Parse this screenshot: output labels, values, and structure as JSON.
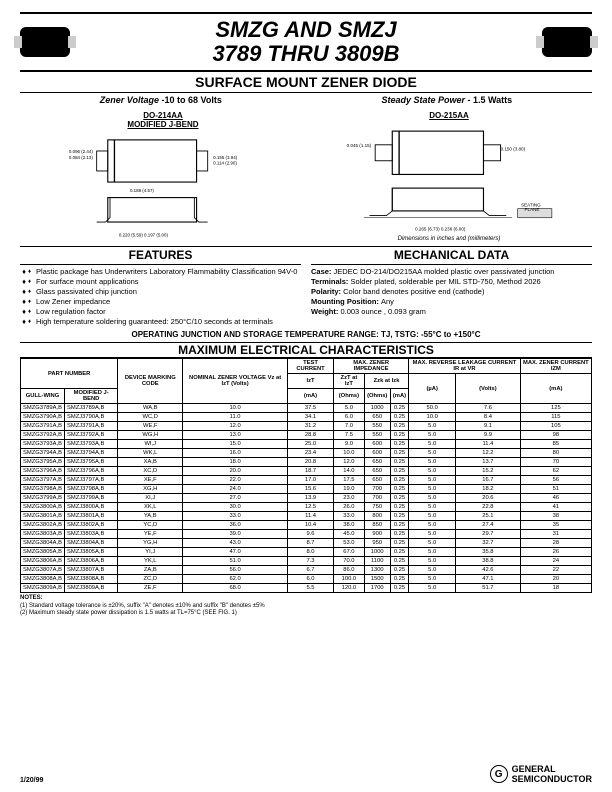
{
  "header": {
    "title_l1": "SMZG AND SMZJ",
    "title_l2": "3789 THRU 3809B"
  },
  "subtitle": "SURFACE MOUNT ZENER DIODE",
  "specs": {
    "left_label": "Zener Voltage -",
    "left_val": "10 to 68 Volts",
    "right_label": "Steady State Power -",
    "right_val": " 1.5 Watts"
  },
  "diag": {
    "left_title_l1": "DO-214AA",
    "left_title_l2": "MODIFIED J-BEND",
    "right_title": "DO-215AA",
    "dim_note": "Dimensions in inches and (millimeters)"
  },
  "features_title": "FEATURES",
  "features": [
    "Plastic package has Underwriters Laboratory Flammability Classification 94V-0",
    "For surface mount applications",
    "Glass passivated chip junction",
    "Low Zener impedance",
    "Low regulation factor",
    "High temperature soldering guaranteed: 250°C/10 seconds at terminals"
  ],
  "mech_title": "MECHANICAL DATA",
  "mech": {
    "case": "JEDEC DO-214/DO215AA molded plastic over passivated junction",
    "terminals": "Solder plated, solderable per MIL STD-750, Method 2026",
    "polarity": "Color band denotes positive end (cathode)",
    "mounting": "Any",
    "weight": "0.003 ounce , 0.093 gram"
  },
  "op_range": "OPERATING JUNCTION AND STORAGE TEMPERATURE RANGE: TJ, TSTG: -55°C to +150°C",
  "table_title": "MAXIMUM ELECTRICAL CHARACTERISTICS",
  "thead": {
    "part": "PART NUMBER",
    "gull": "GULL-WING",
    "jbend": "MODIFIED J-BEND",
    "marking": "DEVICE MARKING CODE",
    "vz": "NOMINAL ZENER VOLTAGE Vz at IzT (Volts)",
    "izt": "TEST CURRENT",
    "izt_sub": "IzT",
    "izt_unit": "(mA)",
    "imp": "MAX. ZENER IMPEDANCE",
    "zzt": "ZzT at IzT",
    "zzk": "Zzk at Izk",
    "ohms": "(Ohms)",
    "ma": "(mA)",
    "ir": "MAX. REVERSE LEAKAGE CURRENT IR at VR",
    "ua": "(µA)",
    "volts": "(Volts)",
    "izm": "MAX. ZENER CURRENT IZM",
    "izm_unit": "(mA)"
  },
  "rows": [
    [
      "SMZG3789A,B",
      "SMZJ3789A,B",
      "WA,B",
      "10.0",
      "37.5",
      "5.0",
      "1000",
      "0.25",
      "50.0",
      "7.6",
      "125"
    ],
    [
      "SMZG3790A,B",
      "SMZJ3790A,B",
      "WC,D",
      "11.0",
      "34.1",
      "6.0",
      "650",
      "0.25",
      "10.0",
      "8.4",
      "115"
    ],
    [
      "SMZG3791A,B",
      "SMZJ3791A,B",
      "WE,F",
      "12.0",
      "31.2",
      "7.0",
      "550",
      "0.25",
      "5.0",
      "9.1",
      "105"
    ],
    [
      "SMZG3792A,B",
      "SMZJ3792A,B",
      "WG,H",
      "13.0",
      "28.8",
      "7.5",
      "550",
      "0.25",
      "5.0",
      "9.9",
      "98"
    ],
    [
      "SMZG3793A,B",
      "SMZJ3793A,B",
      "WI,J",
      "15.0",
      "25.0",
      "9.0",
      "600",
      "0.25",
      "5.0",
      "11.4",
      "85"
    ],
    [
      "SMZG3794A,B",
      "SMZJ3794A,B",
      "WK,L",
      "16.0",
      "23.4",
      "10.0",
      "600",
      "0.25",
      "5.0",
      "12.2",
      "80"
    ],
    [
      "SMZG3795A,B",
      "SMZJ3795A,B",
      "XA,B",
      "18.0",
      "20.8",
      "12.0",
      "650",
      "0.25",
      "5.0",
      "13.7",
      "70"
    ],
    [
      "SMZG3796A,B",
      "SMZJ3796A,B",
      "XC,D",
      "20.0",
      "18.7",
      "14.0",
      "650",
      "0.25",
      "5.0",
      "15.2",
      "62"
    ],
    [
      "SMZG3797A,B",
      "SMZJ3797A,B",
      "XE,F",
      "22.0",
      "17.0",
      "17.5",
      "650",
      "0.25",
      "5.0",
      "16.7",
      "56"
    ],
    [
      "SMZG3798A,B",
      "SMZJ3798A,B",
      "XG,H",
      "24.0",
      "15.6",
      "19.0",
      "700",
      "0.25",
      "5.0",
      "18.2",
      "51"
    ],
    [
      "SMZG3799A,B",
      "SMZJ3799A,B",
      "XI,J",
      "27.0",
      "13.9",
      "23.0",
      "700",
      "0.25",
      "5.0",
      "20.6",
      "46"
    ],
    [
      "SMZG3800A,B",
      "SMZJ3800A,B",
      "XK,L",
      "30.0",
      "12.5",
      "26.0",
      "750",
      "0.25",
      "5.0",
      "22.8",
      "41"
    ],
    [
      "SMZG3801A,B",
      "SMZJ3801A,B",
      "YA,B",
      "33.0",
      "11.4",
      "33.0",
      "800",
      "0.25",
      "5.0",
      "25.1",
      "38"
    ],
    [
      "SMZG3802A,B",
      "SMZJ3802A,B",
      "YC,D",
      "36.0",
      "10.4",
      "38.0",
      "850",
      "0.25",
      "5.0",
      "27.4",
      "35"
    ],
    [
      "SMZG3803A,B",
      "SMZJ3803A,B",
      "YE,F",
      "39.0",
      "9.6",
      "45.0",
      "900",
      "0.25",
      "5.0",
      "29.7",
      "31"
    ],
    [
      "SMZG3804A,B",
      "SMZJ3804A,B",
      "YG,H",
      "43.0",
      "8.7",
      "53.0",
      "950",
      "0.25",
      "5.0",
      "32.7",
      "28"
    ],
    [
      "SMZG3805A,B",
      "SMZJ3805A,B",
      "YI,J",
      "47.0",
      "8.0",
      "67.0",
      "1000",
      "0.25",
      "5.0",
      "35.8",
      "26"
    ],
    [
      "SMZG3806A,B",
      "SMZJ3806A,B",
      "YK,L",
      "51.0",
      "7.3",
      "70.0",
      "1100",
      "0.25",
      "5.0",
      "38.8",
      "24"
    ],
    [
      "SMZG3807A,B",
      "SMZJ3807A,B",
      "ZA,B",
      "56.0",
      "6.7",
      "86.0",
      "1300",
      "0.25",
      "5.0",
      "42.6",
      "22"
    ],
    [
      "SMZG3808A,B",
      "SMZJ3808A,B",
      "ZC,D",
      "62.0",
      "6.0",
      "100.0",
      "1500",
      "0.25",
      "5.0",
      "47.1",
      "20"
    ],
    [
      "SMZG3809A,B",
      "SMZJ3809A,B",
      "ZE,F",
      "68.0",
      "5.5",
      "120.0",
      "1700",
      "0.25",
      "5.0",
      "51.7",
      "18"
    ]
  ],
  "notes_title": "NOTES:",
  "notes": [
    "(1) Standard voltage tolerance is ±20%, suffix \"A\" denotes ±10% and suffix \"B\" denotes ±5%",
    "(2) Maximum steady state power dissipation is 1.5 watts at TL=75°C (SEE FIG. 1)"
  ],
  "footer": {
    "date": "1/20/99",
    "logo_l1": "GENERAL",
    "logo_l2": "SEMICONDUCTOR"
  }
}
